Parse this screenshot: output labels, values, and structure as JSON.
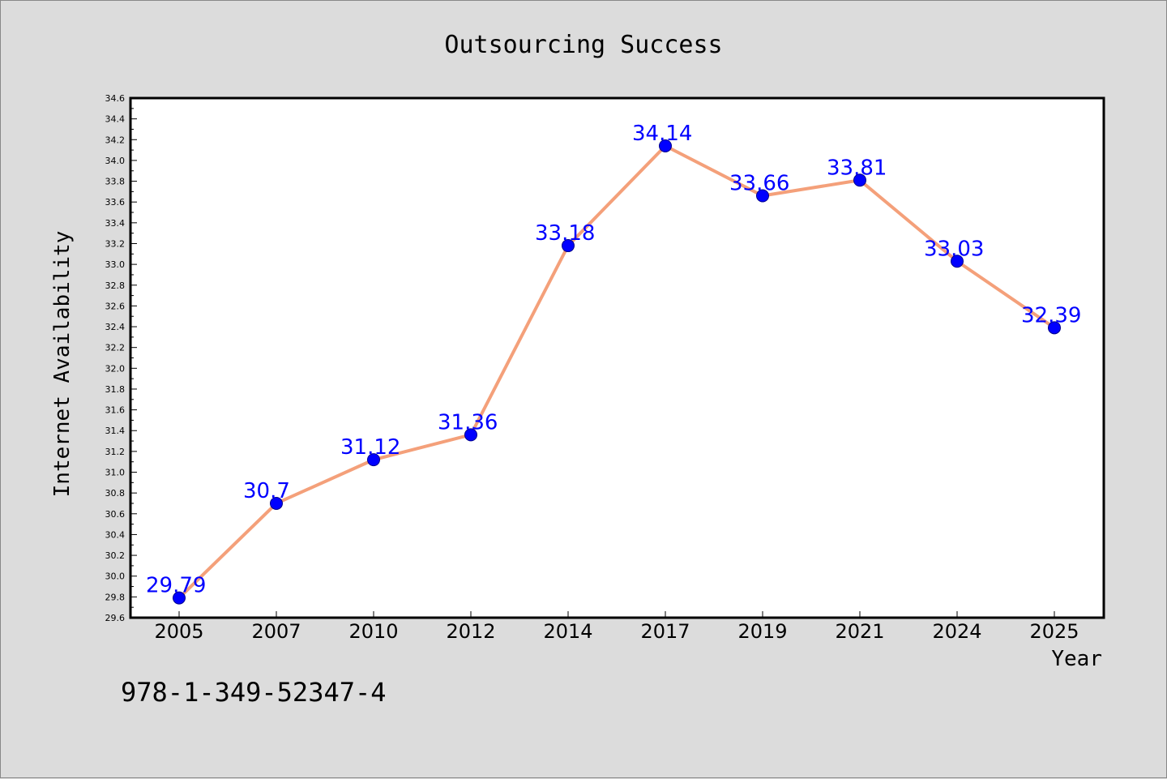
{
  "chart_data": {
    "type": "line",
    "title": "Outsourcing Success",
    "xlabel": "Year",
    "ylabel": "Internet Availability",
    "categories": [
      "2005",
      "2007",
      "2010",
      "2012",
      "2014",
      "2017",
      "2019",
      "2021",
      "2024",
      "2025"
    ],
    "series": [
      {
        "values": [
          29.79,
          30.7,
          31.12,
          31.36,
          33.18,
          34.14,
          33.66,
          33.81,
          33.03,
          32.39
        ],
        "line_color": "#f4a07a",
        "marker_color": "#0000ff"
      }
    ],
    "data_labels": [
      "29.79",
      "30.7",
      "31.12",
      "31.36",
      "33.18",
      "34.14",
      "33.66",
      "33.81",
      "33.03",
      "32.39"
    ],
    "data_label_color": "#0000ff",
    "ylim": [
      29.6,
      34.6
    ],
    "yticks": [
      "29.6",
      "29.8",
      "30.0",
      "30.2",
      "30.4",
      "30.6",
      "30.8",
      "31.0",
      "31.2",
      "31.4",
      "31.6",
      "31.8",
      "32.0",
      "32.2",
      "32.4",
      "32.6",
      "32.8",
      "33.0",
      "33.2",
      "33.4",
      "33.6",
      "33.8",
      "34.0",
      "34.2",
      "34.4",
      "34.6"
    ],
    "grid": false,
    "legend": "none"
  },
  "footnote": "978-1-349-52347-4"
}
